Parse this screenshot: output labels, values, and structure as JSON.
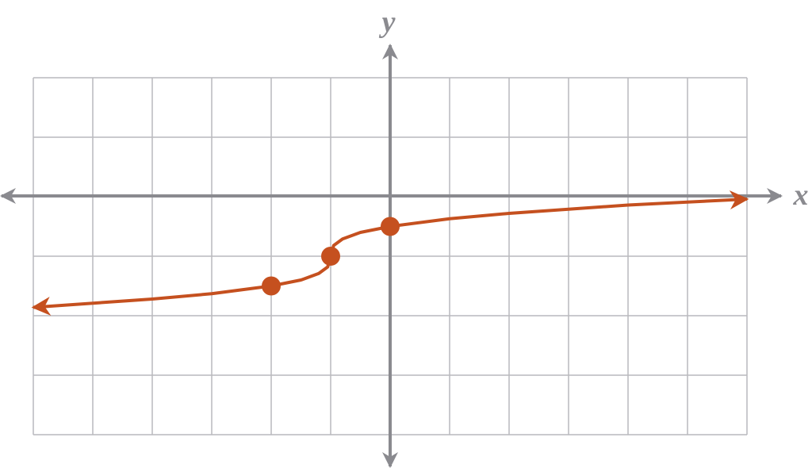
{
  "chart_data": {
    "type": "line",
    "x_label": "x",
    "y_label": "y",
    "xlim": [
      -6,
      6
    ],
    "ylim": [
      -4,
      2
    ],
    "xticks": [
      -6,
      -5,
      -4,
      -3,
      -2,
      -1,
      0,
      1,
      2,
      3,
      4,
      5,
      6
    ],
    "yticks": [
      -4,
      -3,
      -2,
      -1,
      0,
      1,
      2
    ],
    "grid": true,
    "series": [
      {
        "color": "#c5501f",
        "markers": false,
        "arrows": true,
        "x": [
          -6,
          -4,
          -3,
          -2,
          -1.5,
          -1.2,
          -1.05,
          -1,
          -0.95,
          -0.8,
          -0.5,
          0,
          1,
          2,
          3,
          4,
          5,
          6
        ],
        "values": [
          -1.86,
          -1.72,
          -1.63,
          -1.5,
          -1.4,
          -1.29,
          -1.18,
          -1,
          -0.82,
          -0.71,
          -0.6,
          -0.5,
          -0.37,
          -0.28,
          -0.21,
          -0.14,
          -0.09,
          -0.04
        ]
      },
      {
        "color": "#c5501f",
        "markers": true,
        "arrows": false,
        "x": [
          -2,
          -1,
          0
        ],
        "values": [
          -1.5,
          -1,
          -0.5
        ]
      }
    ]
  }
}
